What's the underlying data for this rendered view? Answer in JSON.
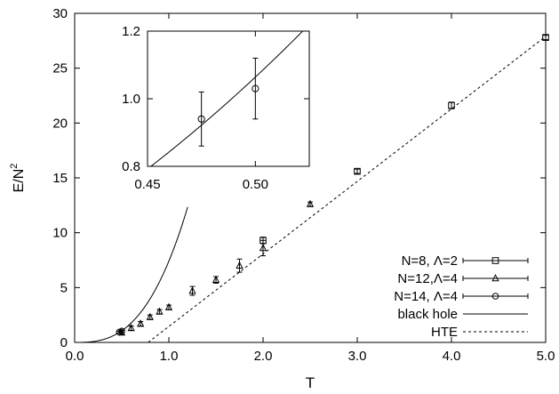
{
  "chart_data": [
    {
      "type": "scatter",
      "title": "",
      "xlabel": "T",
      "ylabel": "E/N",
      "ylabel_sup": "2",
      "xlim": [
        0,
        5
      ],
      "ylim": [
        0,
        30
      ],
      "xticks": [
        {
          "v": 0,
          "label": "0.0"
        },
        {
          "v": 1,
          "label": "1.0"
        },
        {
          "v": 2,
          "label": "2.0"
        },
        {
          "v": 3,
          "label": "3.0"
        },
        {
          "v": 4,
          "label": "4.0"
        },
        {
          "v": 5,
          "label": "5.0"
        }
      ],
      "yticks": [
        {
          "v": 0,
          "label": "0"
        },
        {
          "v": 5,
          "label": "5"
        },
        {
          "v": 10,
          "label": "10"
        },
        {
          "v": 15,
          "label": "15"
        },
        {
          "v": 20,
          "label": "20"
        },
        {
          "v": 25,
          "label": "25"
        },
        {
          "v": 30,
          "label": "30"
        }
      ],
      "legend_position": "bottom-right",
      "series": [
        {
          "name": "N=8, Λ=2",
          "kind": "points",
          "marker": "square",
          "points": [
            {
              "x": 2.0,
              "y": 9.3,
              "err": 0.3
            },
            {
              "x": 3.0,
              "y": 15.6,
              "err": 0.2
            },
            {
              "x": 4.0,
              "y": 21.6,
              "err": 0.3
            },
            {
              "x": 5.0,
              "y": 27.8,
              "err": 0.2
            }
          ]
        },
        {
          "name": "N=12,Λ=4",
          "kind": "points",
          "marker": "triangle",
          "points": [
            {
              "x": 0.5,
              "y": 0.9,
              "err": 0.2
            },
            {
              "x": 0.6,
              "y": 1.3,
              "err": 0.2
            },
            {
              "x": 0.7,
              "y": 1.7,
              "err": 0.2
            },
            {
              "x": 0.8,
              "y": 2.3,
              "err": 0.2
            },
            {
              "x": 0.9,
              "y": 2.8,
              "err": 0.2
            },
            {
              "x": 1.0,
              "y": 3.2,
              "err": 0.2
            },
            {
              "x": 1.25,
              "y": 4.7,
              "err": 0.4
            },
            {
              "x": 1.5,
              "y": 5.7,
              "err": 0.3
            },
            {
              "x": 1.75,
              "y": 7.0,
              "err": 0.6
            },
            {
              "x": 2.0,
              "y": 8.6,
              "err": 0.7
            },
            {
              "x": 2.5,
              "y": 12.6,
              "err": 0.2
            }
          ]
        },
        {
          "name": "N=14, Λ=4",
          "kind": "points",
          "marker": "circle",
          "points": [
            {
              "x": 0.475,
              "y": 0.94,
              "err": 0.08
            },
            {
              "x": 0.5,
              "y": 1.03,
              "err": 0.09
            }
          ]
        },
        {
          "name": "black hole",
          "kind": "line",
          "dash": "solid",
          "formula": "E/N^2 = 7.41 T^(14/5)",
          "x_range": [
            0.0,
            1.2
          ]
        },
        {
          "name": "HTE",
          "kind": "line",
          "dash": "dotted",
          "points": [
            {
              "x": 0.78,
              "y": 0
            },
            {
              "x": 5.0,
              "y": 27.9
            }
          ]
        }
      ]
    },
    {
      "type": "scatter",
      "inset": true,
      "xlim": [
        0.45,
        0.525
      ],
      "ylim": [
        0.8,
        1.2
      ],
      "xticks": [
        {
          "v": 0.45,
          "label": "0.45"
        },
        {
          "v": 0.5,
          "label": "0.50"
        }
      ],
      "yticks": [
        {
          "v": 0.8,
          "label": "0.8"
        },
        {
          "v": 1.0,
          "label": "1.0"
        },
        {
          "v": 1.2,
          "label": "1.2"
        }
      ],
      "series": [
        {
          "name": "N=14, Λ=4",
          "kind": "points",
          "marker": "circle",
          "points": [
            {
              "x": 0.475,
              "y": 0.94,
              "err": 0.08
            },
            {
              "x": 0.5,
              "y": 1.03,
              "err": 0.09
            }
          ]
        },
        {
          "name": "black hole",
          "kind": "line",
          "dash": "solid",
          "formula": "E/N^2 = 7.41 T^(14/5)",
          "x_range": [
            0.45,
            0.525
          ]
        }
      ]
    }
  ]
}
